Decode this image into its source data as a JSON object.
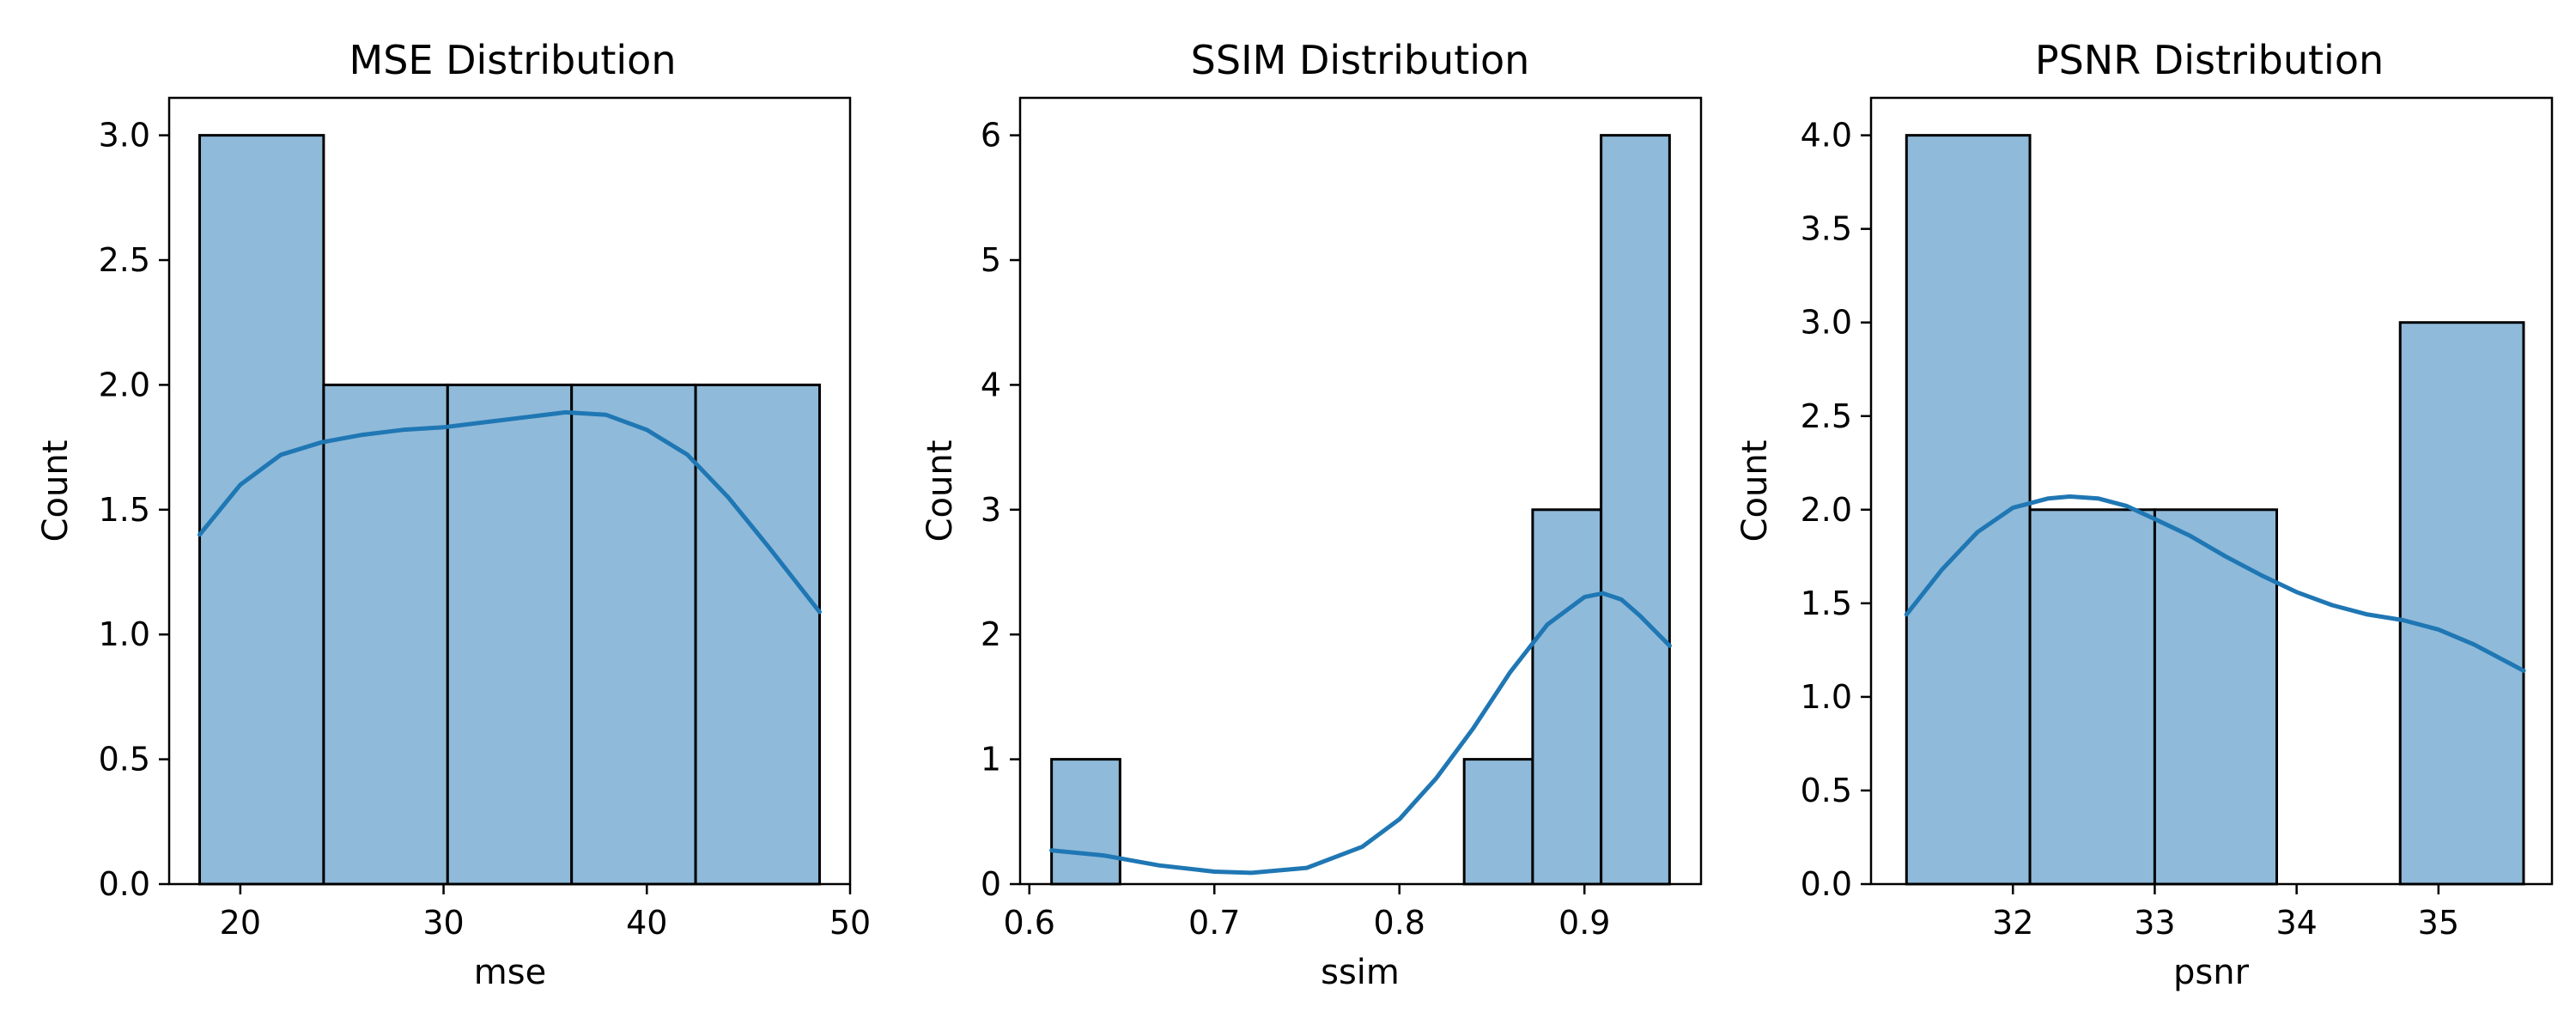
{
  "chart_data": [
    {
      "type": "bar",
      "title": "MSE Distribution",
      "xlabel": "mse",
      "ylabel": "Count",
      "xlim": [
        16.5,
        50.0
      ],
      "ylim": [
        0,
        3.15
      ],
      "xticks": [
        20,
        30,
        40,
        50
      ],
      "yticks": [
        0.0,
        0.5,
        1.0,
        1.5,
        2.0,
        2.5,
        3.0
      ],
      "ytick_labels": [
        "0.0",
        "0.5",
        "1.0",
        "1.5",
        "2.0",
        "2.5",
        "3.0"
      ],
      "bins": [
        {
          "x0": 18.0,
          "x1": 24.1,
          "count": 3
        },
        {
          "x0": 24.1,
          "x1": 30.2,
          "count": 2
        },
        {
          "x0": 30.2,
          "x1": 36.3,
          "count": 2
        },
        {
          "x0": 36.3,
          "x1": 42.4,
          "count": 2
        },
        {
          "x0": 42.4,
          "x1": 48.5,
          "count": 2
        }
      ],
      "kde": {
        "x": [
          18.0,
          20.0,
          22.0,
          24.0,
          26.0,
          28.0,
          30.0,
          32.0,
          34.0,
          36.0,
          38.0,
          40.0,
          42.0,
          44.0,
          46.0,
          48.5
        ],
        "y": [
          1.4,
          1.6,
          1.72,
          1.77,
          1.8,
          1.82,
          1.83,
          1.85,
          1.87,
          1.89,
          1.88,
          1.82,
          1.72,
          1.55,
          1.35,
          1.09
        ]
      }
    },
    {
      "type": "bar",
      "title": "SSIM Distribution",
      "xlabel": "ssim",
      "ylabel": "Count",
      "xlim": [
        0.595,
        0.963
      ],
      "ylim": [
        0,
        6.3
      ],
      "xticks": [
        0.6,
        0.7,
        0.8,
        0.9
      ],
      "yticks": [
        0,
        1,
        2,
        3,
        4,
        5,
        6
      ],
      "ytick_labels": [
        "0",
        "1",
        "2",
        "3",
        "4",
        "5",
        "6"
      ],
      "bins": [
        {
          "x0": 0.612,
          "x1": 0.649,
          "count": 1
        },
        {
          "x0": 0.649,
          "x1": 0.686,
          "count": 0
        },
        {
          "x0": 0.686,
          "x1": 0.723,
          "count": 0
        },
        {
          "x0": 0.723,
          "x1": 0.76,
          "count": 0
        },
        {
          "x0": 0.76,
          "x1": 0.797,
          "count": 0
        },
        {
          "x0": 0.797,
          "x1": 0.835,
          "count": 0
        },
        {
          "x0": 0.835,
          "x1": 0.872,
          "count": 1
        },
        {
          "x0": 0.872,
          "x1": 0.909,
          "count": 3
        },
        {
          "x0": 0.909,
          "x1": 0.946,
          "count": 6
        }
      ],
      "kde": {
        "x": [
          0.612,
          0.64,
          0.67,
          0.7,
          0.72,
          0.75,
          0.78,
          0.8,
          0.82,
          0.84,
          0.86,
          0.88,
          0.9,
          0.91,
          0.92,
          0.93,
          0.946
        ],
        "y": [
          0.27,
          0.23,
          0.15,
          0.1,
          0.09,
          0.13,
          0.3,
          0.52,
          0.85,
          1.25,
          1.7,
          2.08,
          2.3,
          2.33,
          2.28,
          2.15,
          1.91
        ]
      }
    },
    {
      "type": "bar",
      "title": "PSNR Distribution",
      "xlabel": "psnr",
      "ylabel": "Count",
      "xlim": [
        31.0,
        35.8
      ],
      "ylim": [
        0,
        4.2
      ],
      "xticks": [
        32,
        33,
        34,
        35
      ],
      "yticks": [
        0.0,
        0.5,
        1.0,
        1.5,
        2.0,
        2.5,
        3.0,
        3.5,
        4.0
      ],
      "ytick_labels": [
        "0.0",
        "0.5",
        "1.0",
        "1.5",
        "2.0",
        "2.5",
        "3.0",
        "3.5",
        "4.0"
      ],
      "bins": [
        {
          "x0": 31.25,
          "x1": 32.12,
          "count": 4
        },
        {
          "x0": 32.12,
          "x1": 33.0,
          "count": 2
        },
        {
          "x0": 33.0,
          "x1": 33.86,
          "count": 2
        },
        {
          "x0": 33.86,
          "x1": 34.73,
          "count": 0
        },
        {
          "x0": 34.73,
          "x1": 35.6,
          "count": 3
        }
      ],
      "kde": {
        "x": [
          31.25,
          31.5,
          31.75,
          32.0,
          32.25,
          32.4,
          32.6,
          32.8,
          33.0,
          33.25,
          33.5,
          33.75,
          34.0,
          34.25,
          34.5,
          34.75,
          35.0,
          35.25,
          35.6
        ],
        "y": [
          1.44,
          1.68,
          1.88,
          2.01,
          2.06,
          2.07,
          2.06,
          2.02,
          1.95,
          1.86,
          1.75,
          1.65,
          1.56,
          1.49,
          1.44,
          1.41,
          1.36,
          1.28,
          1.14
        ]
      }
    }
  ],
  "colors": {
    "bar_fill": "#8fbad9",
    "bar_edge": "#000000",
    "kde_line": "#1f77b4",
    "axis": "#000000"
  }
}
